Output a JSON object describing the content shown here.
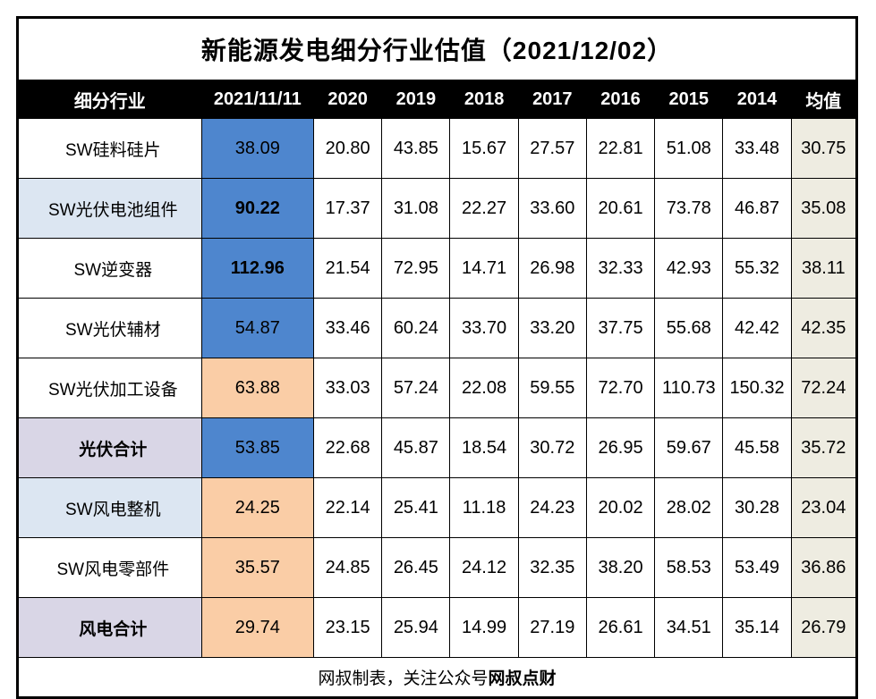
{
  "chart_data": {
    "type": "table",
    "title": "新能源发电细分行业估值（2021/12/02）",
    "columns": [
      "细分行业",
      "2021/11/11",
      "2020",
      "2019",
      "2018",
      "2017",
      "2016",
      "2015",
      "2014",
      "均值"
    ],
    "rows": [
      {
        "label": "SW硅料硅片",
        "label_fill": "none",
        "label_bold": false,
        "current": "38.09",
        "current_fill": "blue",
        "current_bold": false,
        "values": [
          "20.80",
          "43.85",
          "15.67",
          "27.57",
          "22.81",
          "51.08",
          "33.48"
        ],
        "mean": "30.75"
      },
      {
        "label": "SW光伏电池组件",
        "label_fill": "lightblue",
        "label_bold": false,
        "current": "90.22",
        "current_fill": "blue",
        "current_bold": true,
        "values": [
          "17.37",
          "31.08",
          "22.27",
          "33.60",
          "20.61",
          "73.78",
          "46.87"
        ],
        "mean": "35.08"
      },
      {
        "label": "SW逆变器",
        "label_fill": "none",
        "label_bold": false,
        "current": "112.96",
        "current_fill": "blue",
        "current_bold": true,
        "values": [
          "21.54",
          "72.95",
          "14.71",
          "26.98",
          "32.33",
          "42.93",
          "55.32"
        ],
        "mean": "38.11"
      },
      {
        "label": "SW光伏辅材",
        "label_fill": "none",
        "label_bold": false,
        "current": "54.87",
        "current_fill": "blue",
        "current_bold": false,
        "values": [
          "33.46",
          "60.24",
          "33.70",
          "33.20",
          "37.75",
          "55.68",
          "42.42"
        ],
        "mean": "42.35"
      },
      {
        "label": "SW光伏加工设备",
        "label_fill": "none",
        "label_bold": false,
        "current": "63.88",
        "current_fill": "peach",
        "current_bold": false,
        "values": [
          "33.03",
          "57.24",
          "22.08",
          "59.55",
          "72.70",
          "110.73",
          "150.32"
        ],
        "mean": "72.24"
      },
      {
        "label": "光伏合计",
        "label_fill": "lavender",
        "label_bold": true,
        "current": "53.85",
        "current_fill": "blue",
        "current_bold": false,
        "values": [
          "22.68",
          "45.87",
          "18.54",
          "30.72",
          "26.95",
          "59.67",
          "45.58"
        ],
        "mean": "35.72"
      },
      {
        "label": "SW风电整机",
        "label_fill": "lightblue",
        "label_bold": false,
        "current": "24.25",
        "current_fill": "peach",
        "current_bold": false,
        "values": [
          "22.14",
          "25.41",
          "11.18",
          "24.23",
          "20.02",
          "28.02",
          "30.28"
        ],
        "mean": "23.04"
      },
      {
        "label": "SW风电零部件",
        "label_fill": "none",
        "label_bold": false,
        "current": "35.57",
        "current_fill": "peach",
        "current_bold": false,
        "values": [
          "24.85",
          "26.45",
          "24.12",
          "32.35",
          "38.20",
          "58.53",
          "53.49"
        ],
        "mean": "36.86"
      },
      {
        "label": "风电合计",
        "label_fill": "lavender",
        "label_bold": true,
        "current": "29.74",
        "current_fill": "peach",
        "current_bold": false,
        "values": [
          "23.15",
          "25.94",
          "14.99",
          "27.19",
          "26.61",
          "34.51",
          "35.14"
        ],
        "mean": "26.79"
      }
    ],
    "footer_note_regular": "网叔制表，关注公众号",
    "footer_note_bold": "网叔点财"
  },
  "colors": {
    "highlight_blue": "#4E86CE",
    "highlight_peach": "#FACDA6",
    "label_light_blue": "#DCE6F2",
    "label_lavender": "#D9D6E6",
    "mean_beige": "#EEECE1",
    "header_bg": "#000000",
    "header_text": "#FFFFFF"
  }
}
